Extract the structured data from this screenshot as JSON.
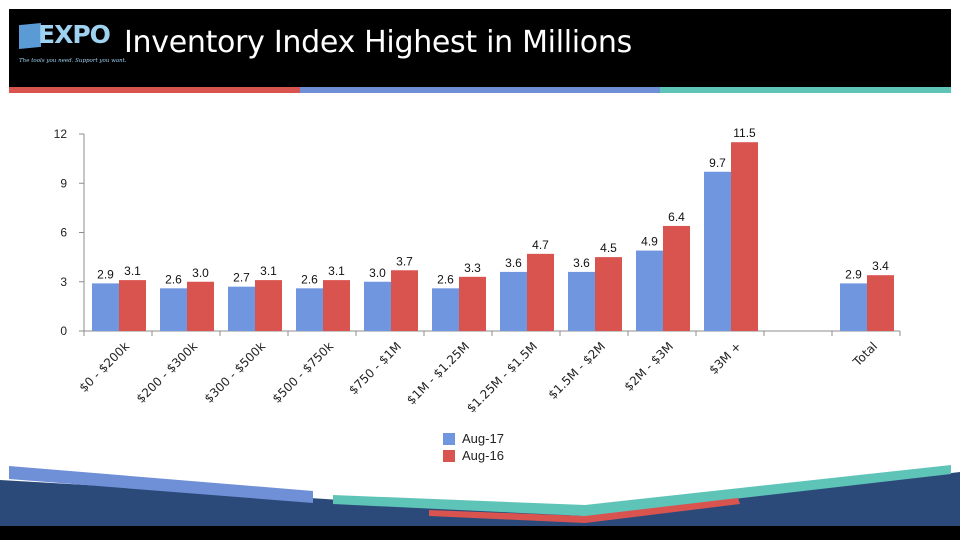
{
  "header": {
    "logo_text": "EXPO",
    "logo_tagline": "The tools you need. Support you want.",
    "title": "Inventory Index Highest in Millions"
  },
  "colors": {
    "series_aug17": "#7096e0",
    "series_aug16": "#d9534f",
    "header_bg": "#000000",
    "footer_navy": "#2b4a79",
    "accent_teal": "#5fc4b8"
  },
  "chart_data": {
    "type": "bar",
    "categories": [
      "$0 - $200k",
      "$200 - $300k",
      "$300 - $500k",
      "$500 - $750k",
      "$750 - $1M",
      "$1M - $1.25M",
      "$1.25M - $1.5M",
      "$1.5M - $2M",
      "$2M - $3M",
      "$3M +",
      "",
      "Total"
    ],
    "series": [
      {
        "name": "Aug-17",
        "values": [
          2.9,
          2.6,
          2.7,
          2.6,
          3.0,
          2.6,
          3.6,
          3.6,
          4.9,
          9.7,
          null,
          2.9
        ],
        "labels": [
          "2.9",
          "2.6",
          "2.7",
          "2.6",
          "3.0",
          "2.6",
          "3.6",
          "3.6",
          "4.9",
          "9.7",
          "",
          "2.9"
        ]
      },
      {
        "name": "Aug-16",
        "values": [
          3.1,
          3.0,
          3.1,
          3.1,
          3.7,
          3.3,
          4.7,
          4.5,
          6.4,
          11.5,
          null,
          3.4
        ],
        "labels": [
          "3.1",
          "3.0",
          "3.1",
          "3.1",
          "3.7",
          "3.3",
          "4.7",
          "4.5",
          "6.4",
          "11.5",
          "",
          "3.4"
        ]
      }
    ],
    "yticks": [
      "0",
      "3",
      "6",
      "9",
      "12"
    ],
    "ylim": [
      0,
      12
    ],
    "legend": "bottom-center",
    "grid": false
  }
}
